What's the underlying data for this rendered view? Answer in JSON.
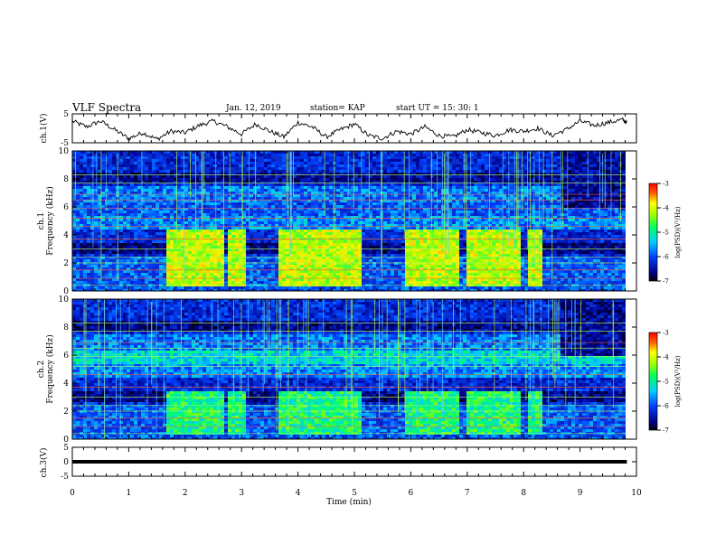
{
  "header": {
    "title": "VLF Spectra",
    "date": "Jan. 12, 2019",
    "station": "station= KAP",
    "start": "start UT =  15: 30: 1"
  },
  "chart_data": [
    {
      "type": "line",
      "panel": "ch1-waveform",
      "ylabel": "ch.1(V)",
      "ylim": [
        -5,
        5
      ],
      "yticks": [
        "5",
        "-5"
      ],
      "xlim": [
        0,
        10
      ],
      "x": [
        0,
        0.25,
        0.5,
        0.75,
        1.0,
        1.25,
        1.5,
        1.75,
        2.0,
        2.25,
        2.5,
        2.75,
        3.0,
        3.25,
        3.5,
        3.75,
        4.0,
        4.25,
        4.5,
        4.75,
        5.0,
        5.25,
        5.5,
        5.75,
        6.0,
        6.25,
        6.5,
        6.75,
        7.0,
        7.25,
        7.5,
        7.75,
        8.0,
        8.25,
        8.5,
        8.75,
        9.0,
        9.25,
        9.5,
        9.75,
        9.83
      ],
      "values": [
        2.5,
        0.5,
        2.5,
        -0.5,
        -3.5,
        -1.5,
        -3.8,
        -1.0,
        -1.5,
        1.0,
        2.5,
        0.5,
        -2.0,
        1.5,
        -1.0,
        -3.0,
        2.0,
        0.5,
        -3.0,
        -0.5,
        1.5,
        -2.5,
        -3.5,
        -1.0,
        -2.0,
        0.5,
        -2.5,
        -3.0,
        -0.5,
        -1.5,
        -2.5,
        -0.5,
        -1.0,
        0.0,
        -2.5,
        -0.5,
        2.5,
        1.0,
        2.0,
        3.0,
        2.0
      ]
    },
    {
      "type": "heatmap",
      "panel": "ch1-spectrogram",
      "ylabel": "ch.1\nFrequency (kHz)",
      "ylim": [
        0,
        10
      ],
      "yticks": [
        "0",
        "2",
        "4",
        "6",
        "8",
        "10"
      ],
      "xlim": [
        0,
        10
      ],
      "colorbar": {
        "label": "log(PSD)(V²/Hz)",
        "range": [
          -7,
          -3
        ],
        "ticks": [
          "-3",
          "-4",
          "-5",
          "-6",
          "-7"
        ]
      },
      "emission_bursts_min": [
        [
          1.62,
          2.65
        ],
        [
          2.72,
          3.02
        ],
        [
          3.6,
          5.08
        ],
        [
          5.87,
          6.8
        ],
        [
          6.97,
          7.9
        ],
        [
          8.02,
          8.32
        ]
      ],
      "emission_band_khz": [
        0.5,
        4.5
      ]
    },
    {
      "type": "heatmap",
      "panel": "ch2-spectrogram",
      "ylabel": "ch.2\nFrequency (kHz)",
      "ylim": [
        0,
        10
      ],
      "yticks": [
        "0",
        "2",
        "4",
        "6",
        "8",
        "10"
      ],
      "xlim": [
        0,
        10
      ],
      "colorbar": {
        "label": "log(PSD)(V²/Hz)",
        "range": [
          -7,
          -3
        ],
        "ticks": [
          "-3",
          "-4",
          "-5",
          "-6",
          "-7"
        ]
      },
      "emission_bursts_min": [
        [
          1.62,
          2.65
        ],
        [
          2.72,
          3.02
        ],
        [
          3.6,
          5.08
        ],
        [
          5.87,
          6.8
        ],
        [
          6.97,
          7.9
        ],
        [
          8.02,
          8.32
        ]
      ],
      "emission_band_khz": [
        0.5,
        3.5
      ]
    },
    {
      "type": "line",
      "panel": "ch3-waveform",
      "ylabel": "ch.3(V)",
      "ylim": [
        -5,
        5
      ],
      "yticks": [
        "5",
        "0",
        "-5"
      ],
      "xlim": [
        0,
        10
      ],
      "x": [
        0,
        9.83
      ],
      "values": [
        0,
        0
      ]
    }
  ],
  "xaxis": {
    "label": "Time (min)",
    "ticks": [
      "0",
      "1",
      "2",
      "3",
      "4",
      "5",
      "6",
      "7",
      "8",
      "9",
      "10"
    ]
  }
}
